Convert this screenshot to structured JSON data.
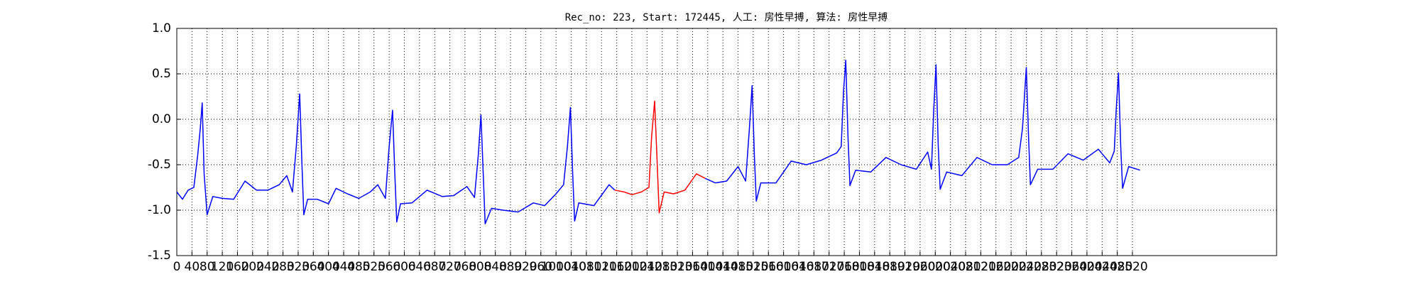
{
  "chart_data": {
    "type": "line",
    "title": "Rec_no: 223, Start: 172445, 人工: 房性早搏, 算法: 房性早搏",
    "series": [
      {
        "color": "#0000ff",
        "x": [
          0,
          15,
          30,
          45,
          55,
          62,
          67,
          72,
          80,
          95,
          120,
          150,
          180,
          210,
          240,
          270,
          290,
          305,
          315,
          324,
          330,
          335,
          345,
          370,
          400,
          420,
          450,
          480,
          510,
          530,
          550,
          560,
          569,
          575,
          580,
          590,
          620,
          660,
          700,
          730,
          765,
          785,
          795,
          802,
          808,
          813,
          830,
          860,
          900,
          940,
          970,
          1000,
          1020,
          1030,
          1038,
          1044,
          1049,
          1060,
          1100,
          1140,
          1155,
          1270,
          1393,
          1420,
          1450,
          1480,
          1500,
          1510,
          1517,
          1523,
          1528,
          1540,
          1580,
          1620,
          1660,
          1700,
          1740,
          1752,
          1758,
          1764,
          1770,
          1775,
          1790,
          1830,
          1870,
          1910,
          1950,
          1980,
          1990,
          1996,
          2002,
          2008,
          2013,
          2030,
          2070,
          2110,
          2150,
          2190,
          2220,
          2230,
          2240,
          2246,
          2251,
          2270,
          2310,
          2350,
          2390,
          2430,
          2460,
          2472,
          2477,
          2483,
          2489,
          2494,
          2510,
          2540
        ],
        "values": [
          -0.8,
          -0.88,
          -0.78,
          -0.75,
          -0.4,
          -0.1,
          0.18,
          -0.6,
          -1.05,
          -0.85,
          -0.87,
          -0.88,
          -0.68,
          -0.78,
          -0.78,
          -0.72,
          -0.62,
          -0.8,
          -0.3,
          0.28,
          -0.5,
          -1.05,
          -0.88,
          -0.88,
          -0.93,
          -0.76,
          -0.82,
          -0.87,
          -0.8,
          -0.72,
          -0.87,
          -0.3,
          0.1,
          -0.6,
          -1.13,
          -0.93,
          -0.92,
          -0.78,
          -0.85,
          -0.84,
          -0.74,
          -0.86,
          -0.4,
          0.05,
          -0.6,
          -1.15,
          -0.98,
          -1.0,
          -1.02,
          -0.92,
          -0.95,
          -0.82,
          -0.72,
          -0.3,
          0.13,
          -0.6,
          -1.12,
          -0.92,
          -0.95,
          -0.72,
          -0.78,
          null,
          -0.65,
          -0.7,
          -0.68,
          -0.52,
          -0.68,
          -0.1,
          0.37,
          -0.4,
          -0.9,
          -0.7,
          -0.7,
          -0.46,
          -0.5,
          -0.45,
          -0.37,
          -0.3,
          0.3,
          0.65,
          -0.2,
          -0.73,
          -0.56,
          -0.58,
          -0.42,
          -0.5,
          -0.55,
          -0.36,
          -0.55,
          0.1,
          0.6,
          -0.3,
          -0.77,
          -0.58,
          -0.62,
          -0.42,
          -0.5,
          -0.5,
          -0.42,
          -0.1,
          0.57,
          -0.2,
          -0.72,
          -0.55,
          -0.55,
          -0.38,
          -0.45,
          -0.33,
          -0.48,
          -0.35,
          0.1,
          0.51,
          -0.3,
          -0.76,
          -0.52,
          -0.56
        ]
      },
      {
        "color": "#ff0000",
        "x": [
          1155,
          1180,
          1200,
          1225,
          1245,
          1252,
          1260,
          1266,
          1272,
          1285,
          1310,
          1340,
          1370,
          1393
        ],
        "values": [
          -0.78,
          -0.8,
          -0.83,
          -0.8,
          -0.75,
          -0.2,
          0.2,
          -0.4,
          -1.03,
          -0.8,
          -0.82,
          -0.78,
          -0.6,
          -0.65
        ]
      }
    ],
    "xlim": [
      0,
      2900
    ],
    "xticks": [
      0,
      40,
      80,
      120,
      160,
      200,
      240,
      280,
      320,
      360,
      400,
      440,
      480,
      520,
      560,
      600,
      640,
      680,
      720,
      760,
      800,
      840,
      880,
      920,
      960,
      1000,
      1040,
      1080,
      1120,
      1160,
      1200,
      1240,
      1280,
      1320,
      1360,
      1400,
      1440,
      1480,
      1520,
      1560,
      1600,
      1640,
      1680,
      1720,
      1760,
      1800,
      1840,
      1880,
      1920,
      1960,
      2000,
      2040,
      2080,
      2120,
      2160,
      2200,
      2240,
      2280,
      2320,
      2360,
      2400,
      2440,
      2480,
      2520
    ],
    "ylim": [
      -1.5,
      1.0
    ],
    "yticks": [
      -1.5,
      {
        "value": -1.0,
        "label": "-1.0"
      },
      -0.5,
      {
        "value": 0.0,
        "label": "0.0"
      },
      0.5,
      {
        "value": 1.0,
        "label": "1.0"
      }
    ],
    "grid": true
  }
}
